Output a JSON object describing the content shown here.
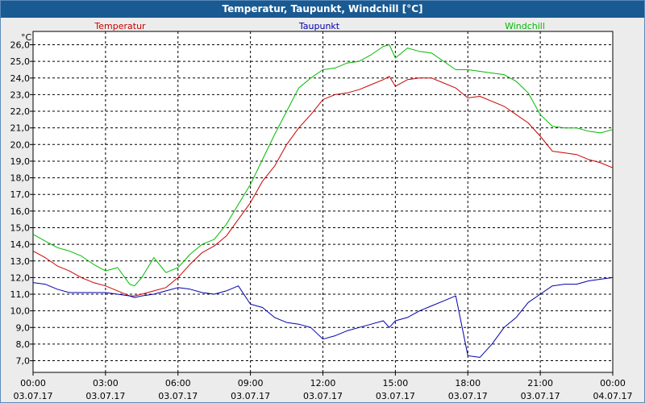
{
  "window": {
    "title": "Temperatur, Taupunkt, Windchill [°C]"
  },
  "chart_data": {
    "type": "line",
    "title": "Temperatur, Taupunkt, Windchill [°C]",
    "ylabel": "°C",
    "ylim": [
      6.3,
      26.8
    ],
    "yticks": [
      7,
      8,
      9,
      10,
      11,
      12,
      13,
      14,
      15,
      16,
      17,
      18,
      19,
      20,
      21,
      22,
      23,
      24,
      25,
      26
    ],
    "ytick_labels": [
      "7,0",
      "8,0",
      "9,0",
      "10,0",
      "11,0",
      "12,0",
      "13,0",
      "14,0",
      "15,0",
      "16,0",
      "17,0",
      "18,0",
      "19,0",
      "20,0",
      "21,0",
      "22,0",
      "23,0",
      "24,0",
      "25,0",
      "26,0"
    ],
    "xlim": [
      0,
      24
    ],
    "xticks": [
      0,
      3,
      6,
      9,
      12,
      15,
      18,
      21,
      24
    ],
    "xtick_times": [
      "00:00",
      "03:00",
      "06:00",
      "09:00",
      "12:00",
      "15:00",
      "18:00",
      "21:00",
      "00:00"
    ],
    "xtick_dates": [
      "03.07.17",
      "03.07.17",
      "03.07.17",
      "03.07.17",
      "03.07.17",
      "03.07.17",
      "03.07.17",
      "03.07.17",
      "04.07.17"
    ],
    "grid": true,
    "legend_position": "top",
    "series": [
      {
        "name": "Temperatur",
        "color": "#cc0000",
        "x": [
          0,
          0.5,
          1,
          1.5,
          2,
          2.5,
          3,
          3.5,
          4,
          4.2,
          4.5,
          5,
          5.5,
          6,
          6.5,
          7,
          7.5,
          8,
          8.5,
          9,
          9.5,
          10,
          10.5,
          11,
          11.5,
          12,
          12.5,
          13,
          13.5,
          14,
          14.5,
          14.75,
          15,
          15.5,
          16,
          16.5,
          17,
          17.5,
          18,
          18.5,
          19,
          19.5,
          20,
          20.5,
          21,
          21.5,
          22,
          22.5,
          23,
          23.5,
          24
        ],
        "y": [
          13.6,
          13.2,
          12.7,
          12.4,
          12.0,
          11.7,
          11.5,
          11.2,
          10.9,
          10.9,
          11.0,
          11.2,
          11.4,
          12.0,
          12.8,
          13.5,
          13.9,
          14.5,
          15.5,
          16.5,
          17.8,
          18.7,
          20.0,
          21.0,
          21.8,
          22.7,
          23.0,
          23.1,
          23.3,
          23.6,
          23.9,
          24.1,
          23.5,
          23.9,
          24.0,
          24.0,
          23.7,
          23.4,
          22.8,
          22.9,
          22.6,
          22.3,
          21.8,
          21.3,
          20.5,
          19.6,
          19.5,
          19.4,
          19.1,
          18.9,
          18.6
        ]
      },
      {
        "name": "Taupunkt",
        "color": "#0000aa",
        "x": [
          0,
          0.5,
          1,
          1.5,
          2,
          2.5,
          3,
          3.5,
          4,
          4.2,
          4.5,
          5,
          5.5,
          6,
          6.5,
          7,
          7.5,
          8,
          8.5,
          9,
          9.5,
          10,
          10.5,
          11,
          11.5,
          12,
          12.5,
          13,
          13.5,
          14,
          14.5,
          14.75,
          15,
          15.5,
          16,
          16.5,
          17,
          17.5,
          18,
          18.5,
          19,
          19.5,
          20,
          20.5,
          21,
          21.5,
          22,
          22.5,
          23,
          23.5,
          24
        ],
        "y": [
          11.7,
          11.6,
          11.3,
          11.1,
          11.1,
          11.1,
          11.1,
          11.0,
          10.9,
          10.8,
          10.9,
          11.0,
          11.2,
          11.4,
          11.3,
          11.1,
          11.0,
          11.2,
          11.5,
          10.4,
          10.2,
          9.6,
          9.3,
          9.2,
          9.0,
          8.3,
          8.5,
          8.8,
          9.0,
          9.2,
          9.4,
          9.0,
          9.4,
          9.6,
          10.0,
          10.3,
          10.6,
          10.9,
          7.3,
          7.2,
          8.0,
          9.0,
          9.6,
          10.5,
          11.0,
          11.5,
          11.6,
          11.6,
          11.8,
          11.9,
          12.0
        ]
      },
      {
        "name": "Windchill",
        "color": "#00bb00",
        "x": [
          0,
          0.5,
          1,
          1.5,
          2,
          2.5,
          3,
          3.5,
          4,
          4.2,
          4.5,
          5,
          5.5,
          6,
          6.5,
          7,
          7.5,
          8,
          8.5,
          9,
          9.5,
          10,
          10.5,
          11,
          11.5,
          12,
          12.5,
          13,
          13.5,
          14,
          14.5,
          14.75,
          15,
          15.5,
          16,
          16.5,
          17,
          17.5,
          18,
          18.5,
          19,
          19.5,
          20,
          20.5,
          21,
          21.5,
          22,
          22.5,
          23,
          23.5,
          24
        ],
        "y": [
          14.6,
          14.2,
          13.8,
          13.6,
          13.3,
          12.8,
          12.4,
          12.6,
          11.6,
          11.5,
          12.0,
          13.2,
          12.3,
          12.6,
          13.4,
          14.0,
          14.3,
          15.2,
          16.4,
          17.6,
          19.1,
          20.6,
          22.0,
          23.4,
          24.0,
          24.5,
          24.6,
          24.9,
          25.0,
          25.4,
          25.9,
          26.0,
          25.2,
          25.8,
          25.6,
          25.5,
          25.0,
          24.5,
          24.5,
          24.4,
          24.3,
          24.2,
          23.8,
          23.1,
          21.8,
          21.1,
          21.0,
          21.0,
          20.8,
          20.7,
          20.9
        ]
      }
    ]
  }
}
